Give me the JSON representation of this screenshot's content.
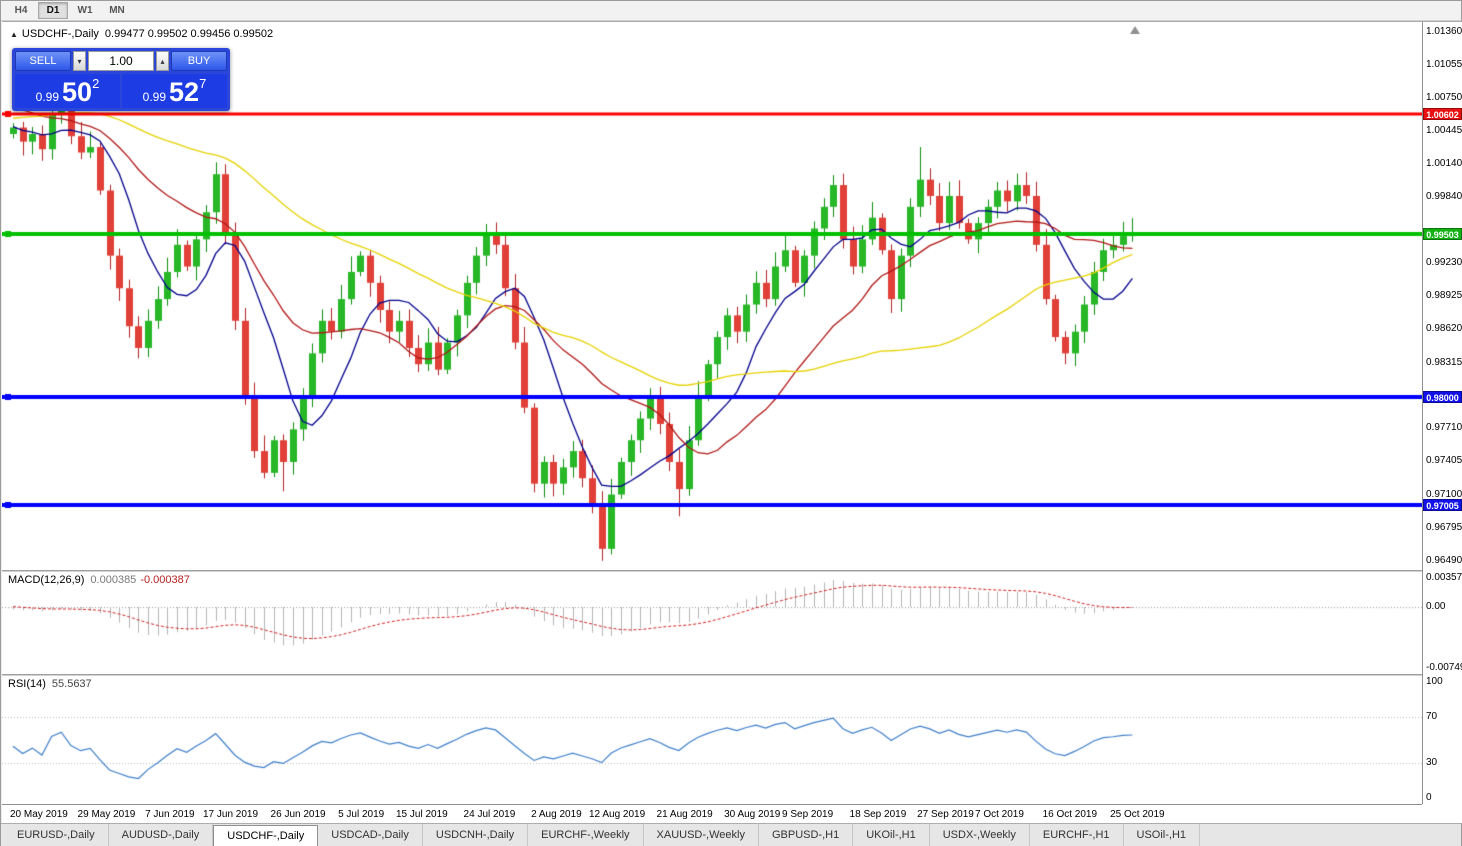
{
  "toolbar": {
    "timeframes": [
      {
        "label": "H4",
        "active": false
      },
      {
        "label": "D1",
        "active": true
      },
      {
        "label": "W1",
        "active": false
      },
      {
        "label": "MN",
        "active": false
      }
    ]
  },
  "chart": {
    "title": "USDCHF-,Daily",
    "ohlc_text": "0.99477 0.99502 0.99456 0.99502",
    "trade_panel": {
      "sell_label": "SELL",
      "buy_label": "BUY",
      "volume": "1.00",
      "sell_price_small": "0.99",
      "sell_price_big": "50",
      "sell_price_sup": "2",
      "buy_price_small": "0.99",
      "buy_price_big": "52",
      "buy_price_sup": "7"
    },
    "price_axis": {
      "ticks": [
        "1.01360",
        "1.01055",
        "1.00750",
        "1.00445",
        "1.00140",
        "0.99840",
        "0.99230",
        "0.98925",
        "0.98620",
        "0.98315",
        "0.97710",
        "0.97405",
        "0.97100",
        "0.96795",
        "0.96490"
      ],
      "badges": [
        {
          "text": "1.00602",
          "price": 1.00602,
          "color": "#e81010"
        },
        {
          "text": "0.99503",
          "price": 0.99503,
          "color": "#12b212"
        },
        {
          "text": "0.98000",
          "price": 0.98,
          "color": "#1212e8"
        },
        {
          "text": "0.97005",
          "price": 0.97005,
          "color": "#1212e8"
        }
      ]
    }
  },
  "macd": {
    "label": "MACD(12,26,9)",
    "value_main": "0.000385",
    "value_signal": "-0.000387",
    "scale_max": 0.003574,
    "scale_min": -0.00749,
    "axis": [
      0.003574,
      0,
      -0.00749
    ],
    "axis_text": [
      "0.003574",
      "0.00",
      "-0.00749"
    ]
  },
  "rsi": {
    "label": "RSI(14)",
    "value_text": "55.5637",
    "levels": [
      70,
      30
    ],
    "axis": [
      100,
      70,
      30,
      0
    ],
    "axis_text": [
      "100",
      "70",
      "30",
      "0"
    ]
  },
  "tabs": [
    {
      "label": "EURUSD-,Daily",
      "active": false
    },
    {
      "label": "AUDUSD-,Daily",
      "active": false
    },
    {
      "label": "USDCHF-,Daily",
      "active": true
    },
    {
      "label": "USDCAD-,Daily",
      "active": false
    },
    {
      "label": "USDCNH-,Daily",
      "active": false
    },
    {
      "label": "EURCHF-,Weekly",
      "active": false
    },
    {
      "label": "XAUUSD-,Weekly",
      "active": false
    },
    {
      "label": "GBPUSD-,H1",
      "active": false
    },
    {
      "label": "UKOil-,H1",
      "active": false
    },
    {
      "label": "USDX-,Weekly",
      "active": false
    },
    {
      "label": "EURCHF-,H1",
      "active": false
    },
    {
      "label": "USOil-,H1",
      "active": false
    }
  ],
  "chart_data": {
    "type": "candlestick-ohlc",
    "symbol": "USDCHF",
    "timeframe": "Daily",
    "open_display": "0.99477",
    "high_display": "0.99502",
    "low_display": "0.99456",
    "close_display": "0.99502",
    "price_top": 1.01452,
    "price_bottom": 0.96405,
    "closes": [
      1.0048,
      1.0035,
      1.0042,
      1.0028,
      1.006,
      1.007,
      1.004,
      1.0025,
      1.003,
      0.999,
      0.993,
      0.99,
      0.9865,
      0.9845,
      0.987,
      0.989,
      0.9915,
      0.994,
      0.992,
      0.9945,
      0.997,
      1.0005,
      0.995,
      0.987,
      0.98,
      0.975,
      0.973,
      0.976,
      0.974,
      0.977,
      0.98,
      0.984,
      0.987,
      0.986,
      0.989,
      0.9915,
      0.993,
      0.9905,
      0.988,
      0.986,
      0.987,
      0.9845,
      0.983,
      0.985,
      0.9825,
      0.985,
      0.9875,
      0.9905,
      0.993,
      0.995,
      0.994,
      0.99,
      0.985,
      0.979,
      0.972,
      0.974,
      0.972,
      0.9735,
      0.975,
      0.9725,
      0.97,
      0.966,
      0.971,
      0.974,
      0.976,
      0.978,
      0.98,
      0.9775,
      0.974,
      0.9715,
      0.976,
      0.98,
      0.983,
      0.9855,
      0.9875,
      0.986,
      0.9885,
      0.9905,
      0.989,
      0.992,
      0.9935,
      0.9905,
      0.993,
      0.9955,
      0.9975,
      0.9995,
      0.9945,
      0.992,
      0.9945,
      0.9965,
      0.9935,
      0.989,
      0.993,
      0.9975,
      1.0,
      0.9985,
      0.996,
      0.9985,
      0.996,
      0.9945,
      0.996,
      0.9975,
      0.999,
      0.998,
      0.9995,
      0.9985,
      0.994,
      0.989,
      0.9855,
      0.984,
      0.986,
      0.9885,
      0.9915,
      0.9935,
      0.994,
      0.9948,
      0.99502
    ],
    "warmup_closes": [
      0.998,
      0.9985,
      0.9992,
      0.9988,
      0.9996,
      1.0002,
      0.9998,
      1.0008,
      1.0012,
      1.0006,
      1.0015,
      1.0022,
      1.0018,
      1.0028,
      1.0035,
      1.003,
      1.004,
      1.0048,
      1.0042,
      1.0052,
      1.006,
      1.0055,
      1.0065,
      1.0072,
      1.0068,
      1.0078,
      1.0085,
      1.008,
      1.009,
      1.0098,
      1.0092,
      1.01,
      1.0095,
      1.0088,
      1.0092,
      1.0085,
      1.0078,
      1.0082,
      1.0075,
      1.0068,
      1.0072,
      1.0065,
      1.0058,
      1.0062,
      1.0055,
      1.0048,
      1.0052,
      1.0045,
      1.0038,
      1.0042
    ],
    "wick_overrides": {
      "5": {
        "high": 1.0078
      },
      "21": {
        "high": 1.0016
      },
      "28": {
        "low": 0.9713
      },
      "54": {
        "low": 0.9712
      },
      "61": {
        "low": 0.9649
      },
      "69": {
        "low": 0.969
      },
      "94": {
        "high": 1.003
      },
      "109": {
        "low": 0.983
      }
    },
    "hlines": [
      {
        "price": 1.00602,
        "color": "#ff0000",
        "width": 3
      },
      {
        "price": 0.99503,
        "color": "#00c000",
        "width": 4
      },
      {
        "price": 0.98,
        "color": "#0000ff",
        "width": 4
      },
      {
        "price": 0.97005,
        "color": "#0000ff",
        "width": 4
      }
    ],
    "ma": [
      {
        "period": 8,
        "color": "#00008b"
      },
      {
        "period": 20,
        "color": "#b01818"
      },
      {
        "period": 45,
        "color": "#e6d200"
      }
    ],
    "candle_up_color": "#27b727",
    "candle_down_color": "#e04038",
    "x_labels": [
      [
        "20 May 2019",
        0
      ],
      [
        "29 May 2019",
        7
      ],
      [
        "7 Jun 2019",
        14
      ],
      [
        "17 Jun 2019",
        20
      ],
      [
        "26 Jun 2019",
        27
      ],
      [
        "5 Jul 2019",
        34
      ],
      [
        "15 Jul 2019",
        40
      ],
      [
        "24 Jul 2019",
        47
      ],
      [
        "2 Aug 2019",
        54
      ],
      [
        "12 Aug 2019",
        60
      ],
      [
        "21 Aug 2019",
        67
      ],
      [
        "30 Aug 2019",
        74
      ],
      [
        "9 Sep 2019",
        80
      ],
      [
        "18 Sep 2019",
        87
      ],
      [
        "27 Sep 2019",
        94
      ],
      [
        "7 Oct 2019",
        100
      ],
      [
        "16 Oct 2019",
        107
      ],
      [
        "25 Oct 2019",
        114
      ]
    ]
  }
}
